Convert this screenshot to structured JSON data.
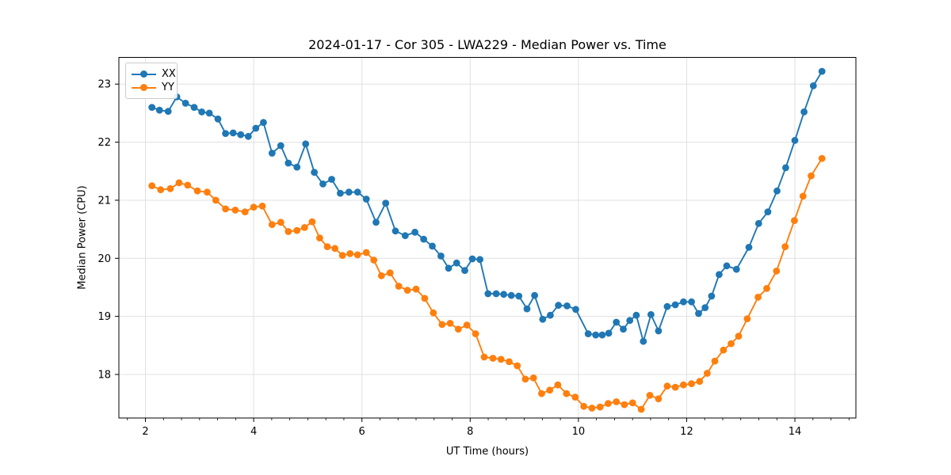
{
  "figure": {
    "background": "#ffffff",
    "text_color": "#000000",
    "spine_color": "#000000"
  },
  "chart_data": {
    "type": "line",
    "title": "2024-01-17 - Cor 305 - LWA229 - Median Power vs. Time",
    "xlabel": "UT Time (hours)",
    "ylabel": "Median Power (CPU)",
    "xlim": [
      1.509,
      15.127
    ],
    "ylim": [
      17.25,
      23.46
    ],
    "xticks": [
      2,
      4,
      6,
      8,
      10,
      12,
      14
    ],
    "yticks": [
      18,
      19,
      20,
      21,
      22,
      23
    ],
    "minor_xticks_per_major": 6,
    "grid": true,
    "grid_color": "#e0e0e0",
    "legend_position": "upper-left",
    "marker": "circle",
    "series": [
      {
        "name": "XX",
        "color": "#1f77b4",
        "points": [
          [
            2.12,
            22.6
          ],
          [
            2.26,
            22.55
          ],
          [
            2.42,
            22.53
          ],
          [
            2.58,
            22.78
          ],
          [
            2.74,
            22.67
          ],
          [
            2.9,
            22.6
          ],
          [
            3.04,
            22.52
          ],
          [
            3.18,
            22.5
          ],
          [
            3.34,
            22.4
          ],
          [
            3.48,
            22.15
          ],
          [
            3.62,
            22.16
          ],
          [
            3.76,
            22.13
          ],
          [
            3.9,
            22.1
          ],
          [
            4.04,
            22.24
          ],
          [
            4.18,
            22.34
          ],
          [
            4.34,
            21.81
          ],
          [
            4.5,
            21.94
          ],
          [
            4.64,
            21.64
          ],
          [
            4.8,
            21.57
          ],
          [
            4.96,
            21.97
          ],
          [
            5.12,
            21.48
          ],
          [
            5.28,
            21.28
          ],
          [
            5.44,
            21.36
          ],
          [
            5.6,
            21.12
          ],
          [
            5.76,
            21.14
          ],
          [
            5.92,
            21.14
          ],
          [
            6.08,
            21.02
          ],
          [
            6.26,
            20.62
          ],
          [
            6.44,
            20.95
          ],
          [
            6.62,
            20.47
          ],
          [
            6.8,
            20.39
          ],
          [
            6.98,
            20.45
          ],
          [
            7.14,
            20.33
          ],
          [
            7.3,
            20.21
          ],
          [
            7.46,
            20.04
          ],
          [
            7.6,
            19.83
          ],
          [
            7.75,
            19.92
          ],
          [
            7.9,
            19.79
          ],
          [
            8.04,
            19.99
          ],
          [
            8.18,
            19.98
          ],
          [
            8.33,
            19.39
          ],
          [
            8.48,
            19.39
          ],
          [
            8.62,
            19.38
          ],
          [
            8.76,
            19.36
          ],
          [
            8.9,
            19.35
          ],
          [
            9.05,
            19.13
          ],
          [
            9.19,
            19.36
          ],
          [
            9.34,
            18.95
          ],
          [
            9.48,
            19.02
          ],
          [
            9.63,
            19.19
          ],
          [
            9.79,
            19.18
          ],
          [
            9.95,
            19.12
          ],
          [
            10.18,
            18.7
          ],
          [
            10.32,
            18.68
          ],
          [
            10.44,
            18.68
          ],
          [
            10.56,
            18.71
          ],
          [
            10.7,
            18.9
          ],
          [
            10.83,
            18.78
          ],
          [
            10.95,
            18.93
          ],
          [
            11.07,
            19.02
          ],
          [
            11.2,
            18.57
          ],
          [
            11.34,
            19.03
          ],
          [
            11.48,
            18.75
          ],
          [
            11.64,
            19.17
          ],
          [
            11.79,
            19.2
          ],
          [
            11.94,
            19.25
          ],
          [
            12.09,
            19.25
          ],
          [
            12.22,
            19.05
          ],
          [
            12.34,
            19.15
          ],
          [
            12.46,
            19.35
          ],
          [
            12.6,
            19.72
          ],
          [
            12.74,
            19.87
          ],
          [
            12.92,
            19.81
          ],
          [
            13.15,
            20.19
          ],
          [
            13.33,
            20.6
          ],
          [
            13.5,
            20.8
          ],
          [
            13.67,
            21.16
          ],
          [
            13.83,
            21.56
          ],
          [
            14.0,
            22.03
          ],
          [
            14.17,
            22.52
          ],
          [
            14.34,
            22.97
          ],
          [
            14.5,
            23.22
          ]
        ]
      },
      {
        "name": "YY",
        "color": "#ff7f0e",
        "points": [
          [
            2.12,
            21.25
          ],
          [
            2.28,
            21.18
          ],
          [
            2.46,
            21.2
          ],
          [
            2.62,
            21.3
          ],
          [
            2.78,
            21.26
          ],
          [
            2.96,
            21.16
          ],
          [
            3.14,
            21.14
          ],
          [
            3.3,
            21.0
          ],
          [
            3.48,
            20.85
          ],
          [
            3.66,
            20.83
          ],
          [
            3.84,
            20.8
          ],
          [
            4.0,
            20.88
          ],
          [
            4.16,
            20.9
          ],
          [
            4.34,
            20.58
          ],
          [
            4.5,
            20.62
          ],
          [
            4.64,
            20.46
          ],
          [
            4.8,
            20.48
          ],
          [
            4.94,
            20.53
          ],
          [
            5.08,
            20.63
          ],
          [
            5.22,
            20.35
          ],
          [
            5.36,
            20.2
          ],
          [
            5.5,
            20.17
          ],
          [
            5.64,
            20.05
          ],
          [
            5.78,
            20.08
          ],
          [
            5.92,
            20.06
          ],
          [
            6.08,
            20.1
          ],
          [
            6.22,
            19.97
          ],
          [
            6.36,
            19.7
          ],
          [
            6.52,
            19.75
          ],
          [
            6.68,
            19.52
          ],
          [
            6.84,
            19.45
          ],
          [
            7.0,
            19.47
          ],
          [
            7.16,
            19.31
          ],
          [
            7.32,
            19.06
          ],
          [
            7.48,
            18.86
          ],
          [
            7.63,
            18.88
          ],
          [
            7.78,
            18.78
          ],
          [
            7.94,
            18.85
          ],
          [
            8.1,
            18.7
          ],
          [
            8.26,
            18.3
          ],
          [
            8.42,
            18.28
          ],
          [
            8.57,
            18.26
          ],
          [
            8.72,
            18.22
          ],
          [
            8.87,
            18.15
          ],
          [
            9.02,
            17.92
          ],
          [
            9.17,
            17.94
          ],
          [
            9.32,
            17.67
          ],
          [
            9.47,
            17.73
          ],
          [
            9.62,
            17.82
          ],
          [
            9.78,
            17.67
          ],
          [
            9.94,
            17.61
          ],
          [
            10.1,
            17.45
          ],
          [
            10.25,
            17.42
          ],
          [
            10.4,
            17.44
          ],
          [
            10.55,
            17.5
          ],
          [
            10.7,
            17.53
          ],
          [
            10.85,
            17.48
          ],
          [
            11.0,
            17.51
          ],
          [
            11.16,
            17.4
          ],
          [
            11.32,
            17.64
          ],
          [
            11.48,
            17.58
          ],
          [
            11.64,
            17.8
          ],
          [
            11.79,
            17.78
          ],
          [
            11.94,
            17.82
          ],
          [
            12.09,
            17.84
          ],
          [
            12.24,
            17.88
          ],
          [
            12.38,
            18.02
          ],
          [
            12.52,
            18.23
          ],
          [
            12.68,
            18.42
          ],
          [
            12.82,
            18.53
          ],
          [
            12.96,
            18.66
          ],
          [
            13.12,
            18.96
          ],
          [
            13.32,
            19.33
          ],
          [
            13.48,
            19.48
          ],
          [
            13.66,
            19.78
          ],
          [
            13.82,
            20.2
          ],
          [
            13.99,
            20.65
          ],
          [
            14.15,
            21.07
          ],
          [
            14.3,
            21.42
          ],
          [
            14.5,
            21.72
          ]
        ]
      }
    ]
  }
}
